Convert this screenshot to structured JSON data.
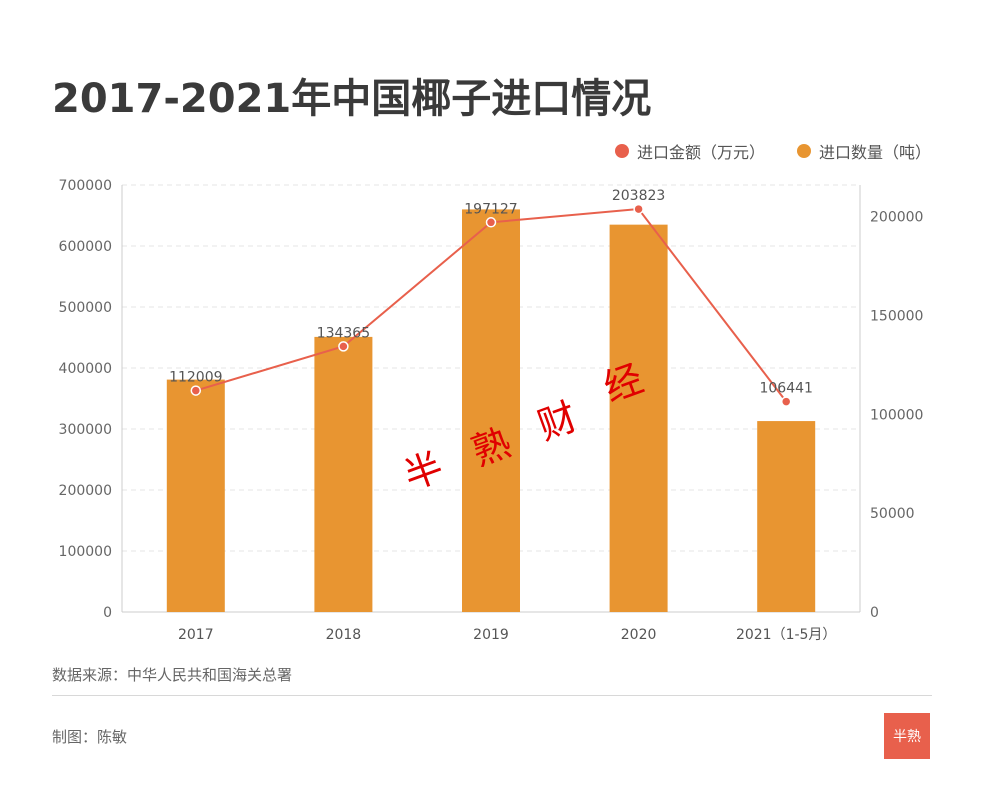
{
  "title": "2017-2021年中国椰子进口情况",
  "legend": {
    "amount_label": "进口金额（万元）",
    "quantity_label": "进口数量（吨）"
  },
  "colors": {
    "bar": "#e89531",
    "line": "#e8604c",
    "grid": "#e6e6e6",
    "axis": "#cccccc",
    "watermark": "#e00000"
  },
  "watermark": "半 熟 财 经",
  "source": "数据来源：中华人民共和国海关总署",
  "author": "制图：陈敏",
  "logo_icon": "banshu-logo-icon",
  "chart_data": {
    "type": "bar",
    "categories": [
      "2017",
      "2018",
      "2019",
      "2020",
      "2021（1-5月）"
    ],
    "series": [
      {
        "name": "进口数量（吨）",
        "type": "bar",
        "axis": "left",
        "values": [
          381000,
          451000,
          660000,
          635000,
          313000
        ]
      },
      {
        "name": "进口金额（万元）",
        "type": "line",
        "axis": "right",
        "values": [
          112009,
          134365,
          197127,
          203823,
          106441
        ],
        "labels": [
          "112009",
          "134365",
          "197127",
          "203823",
          "106441"
        ]
      }
    ],
    "y_left": {
      "lim": [
        0,
        700000
      ],
      "ticks": [
        "0",
        "100000",
        "200000",
        "300000",
        "400000",
        "500000",
        "600000",
        "700000"
      ]
    },
    "y_right": {
      "lim": [
        0,
        216000
      ],
      "ticks": [
        "0",
        "50000",
        "100000",
        "150000",
        "200000"
      ]
    },
    "grid": true,
    "legend_position": "top-right"
  }
}
